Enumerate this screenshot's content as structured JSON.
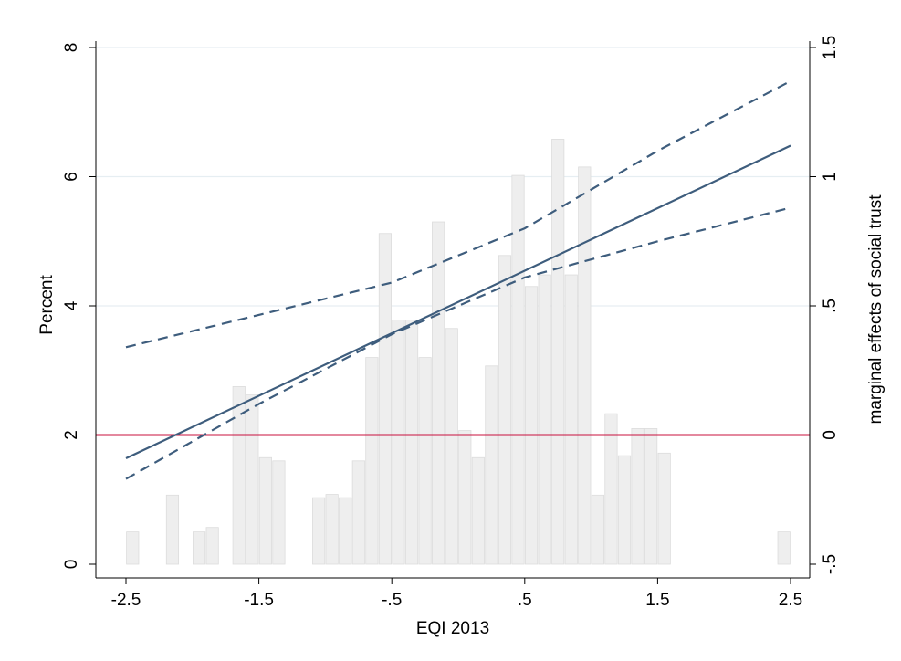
{
  "chart_data": {
    "type": "bar",
    "xlabel": "EQI 2013",
    "ylabel": "Percent",
    "y2label": "marginal effects of social trust",
    "xlim": [
      -2.55,
      2.55
    ],
    "ylim": [
      0,
      8
    ],
    "y2lim": [
      -0.5,
      1.5
    ],
    "x_ticks": [
      {
        "value": -2.5,
        "label": "-2.5"
      },
      {
        "value": -1.5,
        "label": "-1.5"
      },
      {
        "value": -0.5,
        "label": "-.5"
      },
      {
        "value": 0.5,
        "label": ".5"
      },
      {
        "value": 1.5,
        "label": "1.5"
      },
      {
        "value": 2.5,
        "label": "2.5"
      }
    ],
    "y_ticks": [
      {
        "value": 0,
        "label": "0"
      },
      {
        "value": 2,
        "label": "2"
      },
      {
        "value": 4,
        "label": "4"
      },
      {
        "value": 6,
        "label": "6"
      },
      {
        "value": 8,
        "label": "8"
      }
    ],
    "y2_ticks": [
      {
        "value": -0.5,
        "label": "-.5"
      },
      {
        "value": 0,
        "label": "0"
      },
      {
        "value": 0.5,
        "label": ".5"
      },
      {
        "value": 1,
        "label": "1"
      },
      {
        "value": 1.5,
        "label": "1.5"
      }
    ],
    "grid": true,
    "histogram": {
      "bin_width": 0.1,
      "bins": [
        {
          "x": -2.45,
          "value": 0.5
        },
        {
          "x": -2.15,
          "value": 1.07
        },
        {
          "x": -1.95,
          "value": 0.5
        },
        {
          "x": -1.85,
          "value": 0.57
        },
        {
          "x": -1.65,
          "value": 2.75
        },
        {
          "x": -1.55,
          "value": 2.62
        },
        {
          "x": -1.45,
          "value": 1.65
        },
        {
          "x": -1.35,
          "value": 1.6
        },
        {
          "x": -1.05,
          "value": 1.03
        },
        {
          "x": -0.95,
          "value": 1.08
        },
        {
          "x": -0.85,
          "value": 1.03
        },
        {
          "x": -0.75,
          "value": 1.6
        },
        {
          "x": -0.65,
          "value": 3.2
        },
        {
          "x": -0.55,
          "value": 5.12
        },
        {
          "x": -0.45,
          "value": 3.78
        },
        {
          "x": -0.35,
          "value": 3.78
        },
        {
          "x": -0.25,
          "value": 3.2
        },
        {
          "x": -0.15,
          "value": 5.3
        },
        {
          "x": -0.05,
          "value": 3.65
        },
        {
          "x": 0.05,
          "value": 2.07
        },
        {
          "x": 0.15,
          "value": 1.65
        },
        {
          "x": 0.25,
          "value": 3.07
        },
        {
          "x": 0.35,
          "value": 4.78
        },
        {
          "x": 0.45,
          "value": 6.02
        },
        {
          "x": 0.55,
          "value": 4.3
        },
        {
          "x": 0.65,
          "value": 4.48
        },
        {
          "x": 0.75,
          "value": 6.58
        },
        {
          "x": 0.85,
          "value": 4.48
        },
        {
          "x": 0.95,
          "value": 6.15
        },
        {
          "x": 1.05,
          "value": 1.07
        },
        {
          "x": 1.15,
          "value": 2.33
        },
        {
          "x": 1.25,
          "value": 1.68
        },
        {
          "x": 1.35,
          "value": 2.1
        },
        {
          "x": 1.45,
          "value": 2.1
        },
        {
          "x": 1.55,
          "value": 1.72
        },
        {
          "x": 2.45,
          "value": 0.5
        }
      ]
    },
    "series": [
      {
        "role": "estimate",
        "style": "solid",
        "x": [
          -2.5,
          2.5
        ],
        "y": [
          -0.09,
          1.12
        ]
      },
      {
        "role": "upper-ci",
        "style": "dashed",
        "x": [
          -2.5,
          -0.5,
          0.5,
          1.5,
          2.5
        ],
        "y": [
          0.34,
          0.59,
          0.8,
          1.1,
          1.37
        ]
      },
      {
        "role": "lower-ci",
        "style": "dashed",
        "x": [
          -2.5,
          -1.5,
          -0.5,
          0.5,
          1.5,
          2.5
        ],
        "y": [
          -0.17,
          0.12,
          0.39,
          0.61,
          0.75,
          0.88
        ]
      }
    ],
    "reference_line": {
      "y2": 0
    },
    "colors": {
      "bar_fill": "#eeeeee",
      "bar_stroke": "#dcdcdc",
      "line": "#3e5d7d",
      "reference": "#c8103e",
      "grid": "#e6eef2",
      "axis": "#000000"
    }
  }
}
